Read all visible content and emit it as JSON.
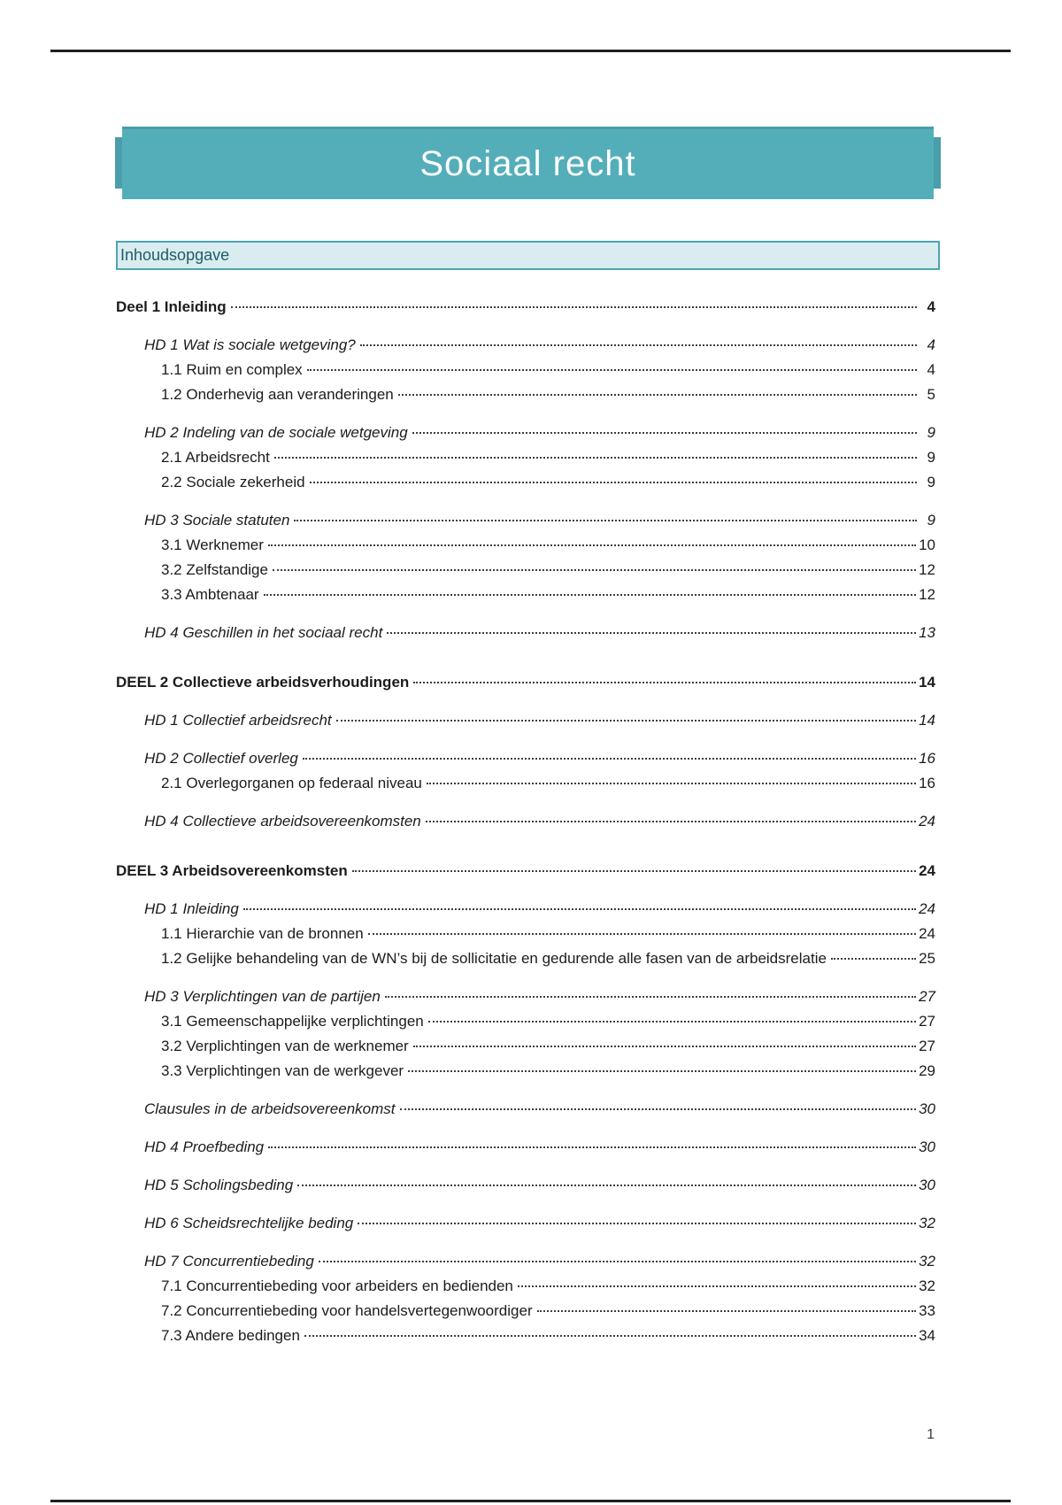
{
  "page": {
    "title": "Sociaal recht",
    "toc_heading": "Inhoudsopgave",
    "page_number": "1"
  },
  "colors": {
    "banner": "#54aeb9",
    "banner_edge": "#4a9ea9",
    "toc_bar_bg": "#d9ecef",
    "toc_bar_border": "#4da4b0",
    "toc_bar_text": "#1e5c66",
    "rule": "#1f1f1f",
    "text": "#1c1c1c"
  },
  "toc": {
    "entries": [
      {
        "level": 1,
        "label": "Deel 1 Inleiding",
        "page": "4"
      },
      {
        "level": 2,
        "label": "HD 1 Wat is sociale wetgeving?",
        "page": "4"
      },
      {
        "level": 3,
        "label": "1.1 Ruim en complex",
        "page": "4"
      },
      {
        "level": 3,
        "label": "1.2 Onderhevig aan veranderingen",
        "page": "5"
      },
      {
        "level": 2,
        "label": "HD 2 Indeling van de sociale wetgeving",
        "page": "9"
      },
      {
        "level": 3,
        "label": "2.1 Arbeidsrecht",
        "page": "9"
      },
      {
        "level": 3,
        "label": "2.2 Sociale zekerheid",
        "page": "9"
      },
      {
        "level": 2,
        "label": "HD 3 Sociale statuten",
        "page": "9"
      },
      {
        "level": 3,
        "label": "3.1 Werknemer",
        "page": "10"
      },
      {
        "level": 3,
        "label": "3.2 Zelfstandige",
        "page": "12"
      },
      {
        "level": 3,
        "label": "3.3 Ambtenaar",
        "page": "12"
      },
      {
        "level": 2,
        "label": "HD 4 Geschillen in het sociaal recht",
        "page": "13"
      },
      {
        "level": 1,
        "label": "DEEL 2 Collectieve arbeidsverhoudingen",
        "page": "14"
      },
      {
        "level": 2,
        "label": "HD 1 Collectief arbeidsrecht",
        "page": "14"
      },
      {
        "level": 2,
        "label": "HD 2 Collectief overleg",
        "page": "16"
      },
      {
        "level": 3,
        "label": "2.1 Overlegorganen op federaal niveau",
        "page": "16"
      },
      {
        "level": 2,
        "label": "HD 4 Collectieve arbeidsovereenkomsten",
        "page": "24"
      },
      {
        "level": 1,
        "label": "DEEL 3 Arbeidsovereenkomsten",
        "page": "24"
      },
      {
        "level": 2,
        "label": "HD 1 Inleiding",
        "page": "24"
      },
      {
        "level": 3,
        "label": "1.1 Hierarchie van de bronnen",
        "page": "24"
      },
      {
        "level": 3,
        "label": "1.2 Gelijke behandeling van de WN’s bij de sollicitatie en gedurende alle fasen van de arbeidsrelatie",
        "page": "25"
      },
      {
        "level": 2,
        "label": "HD 3 Verplichtingen van de partijen",
        "page": "27"
      },
      {
        "level": 3,
        "label": "3.1 Gemeenschappelijke verplichtingen",
        "page": "27"
      },
      {
        "level": 3,
        "label": "3.2 Verplichtingen van de werknemer",
        "page": "27"
      },
      {
        "level": 3,
        "label": "3.3 Verplichtingen van de werkgever",
        "page": "29"
      },
      {
        "level": 2,
        "label": "Clausules in de arbeidsovereenkomst",
        "page": "30"
      },
      {
        "level": 2,
        "label": "HD 4 Proefbeding",
        "page": "30"
      },
      {
        "level": 2,
        "label": "HD 5 Scholingsbeding",
        "page": "30"
      },
      {
        "level": 2,
        "label": "HD 6 Scheidsrechtelijke beding",
        "page": "32"
      },
      {
        "level": 2,
        "label": "HD 7 Concurrentiebeding",
        "page": "32"
      },
      {
        "level": 3,
        "label": "7.1 Concurrentiebeding voor arbeiders en bedienden",
        "page": "32"
      },
      {
        "level": 3,
        "label": "7.2 Concurrentiebeding voor handelsvertegenwoordiger",
        "page": "33"
      },
      {
        "level": 3,
        "label": "7.3 Andere bedingen",
        "page": "34"
      }
    ]
  }
}
